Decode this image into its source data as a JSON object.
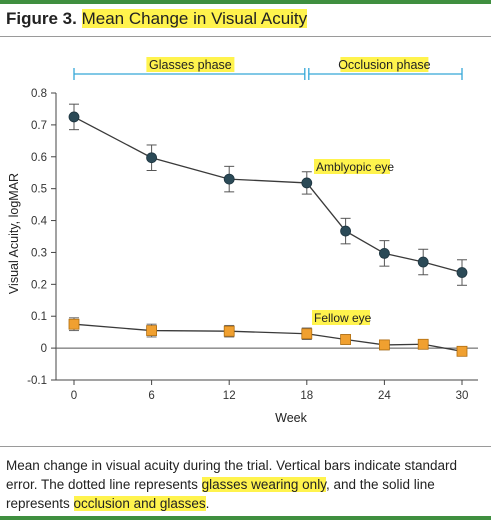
{
  "figure": {
    "label": "Figure 3.",
    "title": "Mean Change in Visual Acuity"
  },
  "caption": {
    "part1": "Mean change in visual acuity during the trial. Vertical bars indicate standard error. The dotted line represents ",
    "highlight1": "glasses wearing only",
    "part2": ", and the solid line represents ",
    "highlight2": "occlusion and glasses",
    "part3": "."
  },
  "colors": {
    "amblyopic": "#2b4a57",
    "fellow": "#f0a030",
    "phase": "#35a8d8",
    "highlight": "#fff34d",
    "rule": "#3f8f3f"
  },
  "chart_data": {
    "type": "line",
    "xlabel": "Week",
    "ylabel": "Visual Acuity, logMAR",
    "xlim": [
      0,
      30
    ],
    "ylim": [
      -0.1,
      0.8
    ],
    "xticks": [
      0,
      6,
      12,
      18,
      24,
      30
    ],
    "yticks": [
      -0.1,
      0,
      0.1,
      0.2,
      0.3,
      0.4,
      0.5,
      0.6,
      0.7,
      0.8
    ],
    "ytick_labels": [
      "-0.1",
      "0",
      "0.1",
      "0.2",
      "0.3",
      "0.4",
      "0.5",
      "0.6",
      "0.7",
      "0.8"
    ],
    "grid": false,
    "reference_line": 0,
    "phases": [
      {
        "label": "Glasses phase",
        "start": 0,
        "end": 18
      },
      {
        "label": "Occlusion phase",
        "start": 18,
        "end": 30
      }
    ],
    "series": [
      {
        "name": "Amblyopic eye",
        "marker": "circle",
        "x": [
          0,
          6,
          12,
          18,
          21,
          24,
          27,
          30
        ],
        "y": [
          0.725,
          0.597,
          0.53,
          0.518,
          0.367,
          0.297,
          0.27,
          0.237
        ],
        "se": [
          0.04,
          0.04,
          0.04,
          0.035,
          0.04,
          0.04,
          0.04,
          0.04
        ]
      },
      {
        "name": "Fellow eye",
        "marker": "square",
        "x": [
          0,
          6,
          12,
          18,
          21,
          24,
          27,
          30
        ],
        "y": [
          0.075,
          0.055,
          0.053,
          0.045,
          0.027,
          0.01,
          0.012,
          -0.01
        ],
        "se": [
          0.02,
          0.02,
          0.018,
          0.018,
          0.015,
          0.015,
          0.012,
          0.01
        ]
      }
    ]
  }
}
